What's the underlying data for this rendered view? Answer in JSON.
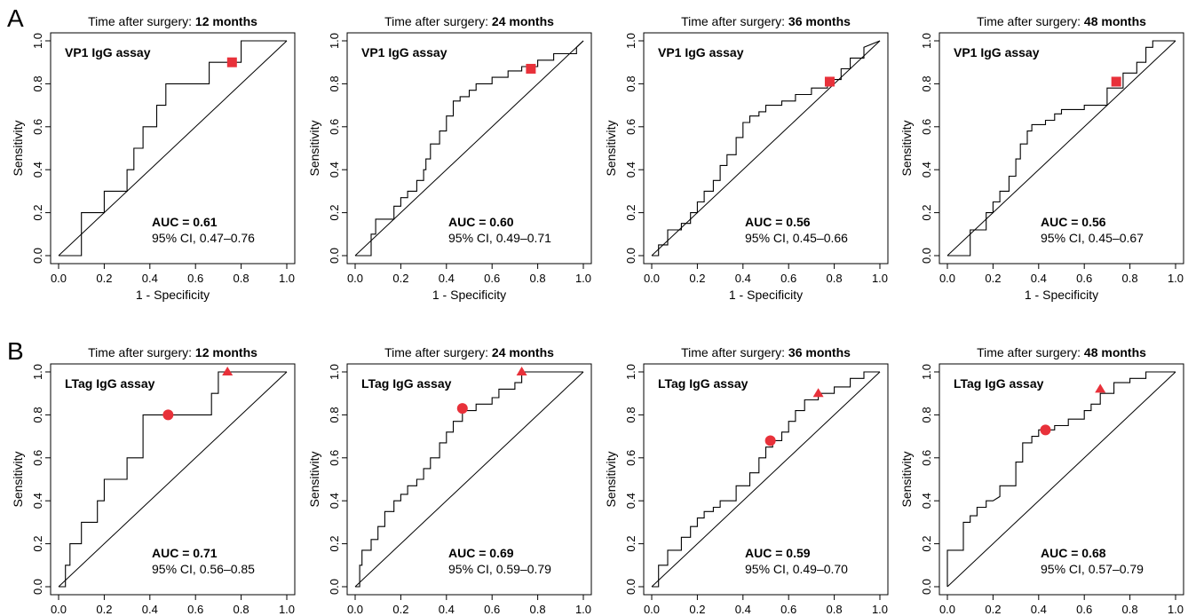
{
  "panel_labels": [
    "A",
    "B"
  ],
  "title_prefix": "Time after surgery: ",
  "chart_data": [
    {
      "type": "line",
      "panel": "A",
      "title": "Time after surgery: 12 months",
      "title_strong": "12 months",
      "assay": "VP1 IgG assay",
      "auc": "AUC = 0.61",
      "ci": "95% CI, 0.47–0.76",
      "xlabel": "1 - Specificity",
      "ylabel": "Sensitivity",
      "xlim": [
        0,
        1
      ],
      "ylim": [
        0,
        1
      ],
      "xticks": [
        "0.0",
        "0.2",
        "0.4",
        "0.6",
        "0.8",
        "1.0"
      ],
      "yticks": [
        "0.0",
        "0.2",
        "0.4",
        "0.6",
        "0.8",
        "1.0"
      ],
      "series": [
        {
          "x": [
            0,
            0.1,
            0.1,
            0.2,
            0.2,
            0.3,
            0.3,
            0.33,
            0.33,
            0.37,
            0.37,
            0.43,
            0.43,
            0.47,
            0.47,
            0.5,
            0.5,
            0.66,
            0.66,
            0.8,
            0.8,
            1.0
          ],
          "y": [
            0,
            0,
            0.2,
            0.2,
            0.3,
            0.3,
            0.4,
            0.4,
            0.5,
            0.5,
            0.6,
            0.6,
            0.7,
            0.7,
            0.8,
            0.8,
            0.8,
            0.8,
            0.9,
            0.9,
            1.0,
            1.0
          ]
        }
      ],
      "markers": [
        {
          "shape": "square",
          "x": 0.76,
          "y": 0.9,
          "color": "#e8313a"
        }
      ]
    },
    {
      "type": "line",
      "panel": "A",
      "title": "Time after surgery: 24 months",
      "title_strong": "24 months",
      "assay": "VP1 IgG assay",
      "auc": "AUC = 0.60",
      "ci": "95% CI, 0.49–0.71",
      "xlabel": "1 - Specificity",
      "ylabel": "Sensitivity",
      "xlim": [
        0,
        1
      ],
      "ylim": [
        0,
        1
      ],
      "xticks": [
        "0.0",
        "0.2",
        "0.4",
        "0.6",
        "0.8",
        "1.0"
      ],
      "yticks": [
        "0.0",
        "0.2",
        "0.4",
        "0.6",
        "0.8",
        "1.0"
      ],
      "series": [
        {
          "x": [
            0,
            0.07,
            0.07,
            0.09,
            0.09,
            0.17,
            0.17,
            0.2,
            0.2,
            0.23,
            0.23,
            0.27,
            0.27,
            0.3,
            0.3,
            0.31,
            0.31,
            0.33,
            0.33,
            0.37,
            0.37,
            0.4,
            0.4,
            0.43,
            0.43,
            0.46,
            0.46,
            0.5,
            0.5,
            0.53,
            0.53,
            0.6,
            0.6,
            0.67,
            0.67,
            0.73,
            0.73,
            0.8,
            0.8,
            0.87,
            0.87,
            0.97,
            0.97,
            1.0
          ],
          "y": [
            0,
            0,
            0.1,
            0.1,
            0.17,
            0.17,
            0.23,
            0.23,
            0.27,
            0.27,
            0.3,
            0.3,
            0.35,
            0.35,
            0.4,
            0.4,
            0.45,
            0.45,
            0.52,
            0.52,
            0.58,
            0.58,
            0.65,
            0.65,
            0.72,
            0.72,
            0.74,
            0.74,
            0.77,
            0.77,
            0.8,
            0.8,
            0.83,
            0.83,
            0.86,
            0.86,
            0.88,
            0.88,
            0.91,
            0.91,
            0.94,
            0.94,
            0.97,
            1.0
          ]
        }
      ],
      "markers": [
        {
          "shape": "square",
          "x": 0.77,
          "y": 0.87,
          "color": "#e8313a"
        }
      ]
    },
    {
      "type": "line",
      "panel": "A",
      "title": "Time after surgery: 36 months",
      "title_strong": "36 months",
      "assay": "VP1 IgG assay",
      "auc": "AUC = 0.56",
      "ci": "95% CI, 0.45–0.66",
      "xlabel": "1 - Specificity",
      "ylabel": "Sensitivity",
      "xlim": [
        0,
        1
      ],
      "ylim": [
        0,
        1
      ],
      "xticks": [
        "0.0",
        "0.2",
        "0.4",
        "0.6",
        "0.8",
        "1.0"
      ],
      "yticks": [
        "0.0",
        "0.2",
        "0.4",
        "0.6",
        "0.8",
        "1.0"
      ],
      "series": [
        {
          "x": [
            0,
            0.03,
            0.03,
            0.07,
            0.07,
            0.13,
            0.13,
            0.17,
            0.17,
            0.2,
            0.2,
            0.23,
            0.23,
            0.27,
            0.27,
            0.3,
            0.3,
            0.33,
            0.33,
            0.37,
            0.37,
            0.4,
            0.4,
            0.43,
            0.43,
            0.47,
            0.47,
            0.5,
            0.5,
            0.57,
            0.57,
            0.63,
            0.63,
            0.7,
            0.7,
            0.77,
            0.77,
            0.83,
            0.83,
            0.87,
            0.87,
            0.93,
            0.93,
            1.0
          ],
          "y": [
            0,
            0,
            0.05,
            0.05,
            0.12,
            0.12,
            0.15,
            0.15,
            0.2,
            0.2,
            0.25,
            0.25,
            0.3,
            0.3,
            0.35,
            0.35,
            0.42,
            0.42,
            0.47,
            0.47,
            0.55,
            0.55,
            0.62,
            0.62,
            0.65,
            0.65,
            0.67,
            0.67,
            0.7,
            0.7,
            0.72,
            0.72,
            0.75,
            0.75,
            0.78,
            0.78,
            0.82,
            0.82,
            0.87,
            0.87,
            0.92,
            0.92,
            0.97,
            1.0
          ]
        }
      ],
      "markers": [
        {
          "shape": "square",
          "x": 0.78,
          "y": 0.81,
          "color": "#e8313a"
        }
      ]
    },
    {
      "type": "line",
      "panel": "A",
      "title": "Time after surgery: 48 months",
      "title_strong": "48 months",
      "assay": "VP1 IgG assay",
      "auc": "AUC = 0.56",
      "ci": "95% CI, 0.45–0.67",
      "xlabel": "1 - Specificity",
      "ylabel": "Sensitivity",
      "xlim": [
        0,
        1
      ],
      "ylim": [
        0,
        1
      ],
      "xticks": [
        "0.0",
        "0.2",
        "0.4",
        "0.6",
        "0.8",
        "1.0"
      ],
      "yticks": [
        "0.0",
        "0.2",
        "0.4",
        "0.6",
        "0.8",
        "1.0"
      ],
      "series": [
        {
          "x": [
            0,
            0.1,
            0.1,
            0.17,
            0.17,
            0.2,
            0.2,
            0.23,
            0.23,
            0.27,
            0.27,
            0.3,
            0.3,
            0.32,
            0.32,
            0.35,
            0.35,
            0.37,
            0.37,
            0.43,
            0.43,
            0.47,
            0.47,
            0.5,
            0.5,
            0.6,
            0.6,
            0.7,
            0.7,
            0.77,
            0.77,
            0.83,
            0.83,
            0.87,
            0.87,
            0.9,
            0.9,
            1.0
          ],
          "y": [
            0,
            0,
            0.12,
            0.12,
            0.2,
            0.2,
            0.25,
            0.25,
            0.3,
            0.3,
            0.37,
            0.37,
            0.45,
            0.45,
            0.52,
            0.52,
            0.58,
            0.58,
            0.61,
            0.61,
            0.63,
            0.63,
            0.66,
            0.66,
            0.68,
            0.68,
            0.7,
            0.7,
            0.78,
            0.78,
            0.85,
            0.85,
            0.9,
            0.9,
            0.97,
            0.97,
            1.0,
            1.0
          ]
        }
      ],
      "markers": [
        {
          "shape": "square",
          "x": 0.74,
          "y": 0.81,
          "color": "#e8313a"
        }
      ]
    },
    {
      "type": "line",
      "panel": "B",
      "title": "Time after surgery: 12 months",
      "title_strong": "12 months",
      "assay": "LTag IgG assay",
      "auc": "AUC = 0.71",
      "ci": "95% CI, 0.56–0.85",
      "xlabel": "",
      "ylabel": "Sensitivity",
      "xlim": [
        0,
        1
      ],
      "ylim": [
        0,
        1
      ],
      "xticks": [
        "0.0",
        "0.2",
        "0.4",
        "0.6",
        "0.8",
        "1.0"
      ],
      "yticks": [
        "0.0",
        "0.2",
        "0.4",
        "0.6",
        "0.8",
        "1.0"
      ],
      "series": [
        {
          "x": [
            0,
            0.03,
            0.03,
            0.05,
            0.05,
            0.1,
            0.1,
            0.17,
            0.17,
            0.2,
            0.2,
            0.23,
            0.23,
            0.3,
            0.3,
            0.37,
            0.37,
            0.43,
            0.43,
            0.53,
            0.53,
            0.67,
            0.67,
            0.7,
            0.7,
            0.73,
            0.73,
            1.0
          ],
          "y": [
            0,
            0,
            0.1,
            0.1,
            0.2,
            0.2,
            0.3,
            0.3,
            0.4,
            0.4,
            0.5,
            0.5,
            0.5,
            0.5,
            0.6,
            0.6,
            0.8,
            0.8,
            0.8,
            0.8,
            0.8,
            0.8,
            0.9,
            0.9,
            1.0,
            1.0,
            1.0,
            1.0
          ]
        }
      ],
      "markers": [
        {
          "shape": "circle",
          "x": 0.48,
          "y": 0.8,
          "color": "#e8313a"
        },
        {
          "shape": "triangle",
          "x": 0.74,
          "y": 1.0,
          "color": "#e8313a"
        }
      ]
    },
    {
      "type": "line",
      "panel": "B",
      "title": "Time after surgery: 24 months",
      "title_strong": "24 months",
      "assay": "LTag IgG assay",
      "auc": "AUC = 0.69",
      "ci": "95% CI, 0.59–0.79",
      "xlabel": "",
      "ylabel": "Sensitivity",
      "xlim": [
        0,
        1
      ],
      "ylim": [
        0,
        1
      ],
      "xticks": [
        "0.0",
        "0.2",
        "0.4",
        "0.6",
        "0.8",
        "1.0"
      ],
      "yticks": [
        "0.0",
        "0.2",
        "0.4",
        "0.6",
        "0.8",
        "1.0"
      ],
      "series": [
        {
          "x": [
            0,
            0.02,
            0.02,
            0.03,
            0.03,
            0.07,
            0.07,
            0.1,
            0.1,
            0.13,
            0.13,
            0.17,
            0.17,
            0.2,
            0.2,
            0.23,
            0.23,
            0.27,
            0.27,
            0.3,
            0.3,
            0.33,
            0.33,
            0.37,
            0.37,
            0.4,
            0.4,
            0.43,
            0.43,
            0.47,
            0.47,
            0.53,
            0.53,
            0.6,
            0.6,
            0.63,
            0.63,
            0.7,
            0.7,
            0.73,
            0.73,
            1.0
          ],
          "y": [
            0,
            0,
            0.1,
            0.1,
            0.17,
            0.17,
            0.22,
            0.22,
            0.28,
            0.28,
            0.35,
            0.35,
            0.4,
            0.4,
            0.43,
            0.43,
            0.47,
            0.47,
            0.5,
            0.5,
            0.55,
            0.55,
            0.6,
            0.6,
            0.67,
            0.67,
            0.72,
            0.72,
            0.77,
            0.77,
            0.82,
            0.82,
            0.85,
            0.85,
            0.88,
            0.88,
            0.92,
            0.92,
            0.95,
            0.95,
            1.0,
            1.0
          ]
        }
      ],
      "markers": [
        {
          "shape": "circle",
          "x": 0.47,
          "y": 0.83,
          "color": "#e8313a"
        },
        {
          "shape": "triangle",
          "x": 0.73,
          "y": 1.0,
          "color": "#e8313a"
        }
      ]
    },
    {
      "type": "line",
      "panel": "B",
      "title": "Time after surgery: 36 months",
      "title_strong": "36 months",
      "assay": "LTag IgG assay",
      "auc": "AUC = 0.59",
      "ci": "95% CI, 0.49–0.70",
      "xlabel": "",
      "ylabel": "Sensitivity",
      "xlim": [
        0,
        1
      ],
      "ylim": [
        0,
        1
      ],
      "xticks": [
        "0.0",
        "0.2",
        "0.4",
        "0.6",
        "0.8",
        "1.0"
      ],
      "yticks": [
        "0.0",
        "0.2",
        "0.4",
        "0.6",
        "0.8",
        "1.0"
      ],
      "series": [
        {
          "x": [
            0,
            0.03,
            0.03,
            0.07,
            0.07,
            0.13,
            0.13,
            0.17,
            0.17,
            0.2,
            0.2,
            0.23,
            0.23,
            0.27,
            0.27,
            0.3,
            0.3,
            0.37,
            0.37,
            0.43,
            0.43,
            0.47,
            0.47,
            0.5,
            0.5,
            0.53,
            0.53,
            0.57,
            0.57,
            0.6,
            0.6,
            0.63,
            0.63,
            0.67,
            0.67,
            0.73,
            0.73,
            0.8,
            0.8,
            0.87,
            0.87,
            0.93,
            0.93,
            1.0
          ],
          "y": [
            0,
            0,
            0.1,
            0.1,
            0.17,
            0.17,
            0.23,
            0.23,
            0.28,
            0.28,
            0.32,
            0.32,
            0.35,
            0.35,
            0.37,
            0.37,
            0.4,
            0.4,
            0.47,
            0.47,
            0.53,
            0.53,
            0.6,
            0.6,
            0.65,
            0.65,
            0.68,
            0.68,
            0.72,
            0.72,
            0.77,
            0.77,
            0.82,
            0.82,
            0.87,
            0.87,
            0.9,
            0.9,
            0.93,
            0.93,
            0.97,
            0.97,
            1.0,
            1.0
          ]
        }
      ],
      "markers": [
        {
          "shape": "circle",
          "x": 0.52,
          "y": 0.68,
          "color": "#e8313a"
        },
        {
          "shape": "triangle",
          "x": 0.73,
          "y": 0.9,
          "color": "#e8313a"
        }
      ]
    },
    {
      "type": "line",
      "panel": "B",
      "title": "Time after surgery: 48 months",
      "title_strong": "48 months",
      "assay": "LTag IgG assay",
      "auc": "AUC = 0.68",
      "ci": "95% CI, 0.57–0.79",
      "xlabel": "",
      "ylabel": "Sensitivity",
      "xlim": [
        0,
        1
      ],
      "ylim": [
        0,
        1
      ],
      "xticks": [
        "0.0",
        "0.2",
        "0.4",
        "0.6",
        "0.8",
        "1.0"
      ],
      "yticks": [
        "0.0",
        "0.2",
        "0.4",
        "0.6",
        "0.8",
        "1.0"
      ],
      "series": [
        {
          "x": [
            0,
            0.0,
            0.07,
            0.07,
            0.1,
            0.1,
            0.13,
            0.13,
            0.17,
            0.17,
            0.2,
            0.2,
            0.23,
            0.23,
            0.3,
            0.3,
            0.33,
            0.33,
            0.37,
            0.37,
            0.4,
            0.4,
            0.43,
            0.43,
            0.47,
            0.47,
            0.53,
            0.53,
            0.6,
            0.6,
            0.63,
            0.63,
            0.67,
            0.67,
            0.73,
            0.73,
            0.8,
            0.8,
            0.87,
            0.87,
            1.0
          ],
          "y": [
            0,
            0.17,
            0.17,
            0.3,
            0.3,
            0.33,
            0.33,
            0.37,
            0.37,
            0.4,
            0.4,
            0.4,
            0.42,
            0.47,
            0.47,
            0.58,
            0.58,
            0.67,
            0.67,
            0.7,
            0.7,
            0.73,
            0.73,
            0.73,
            0.73,
            0.75,
            0.75,
            0.78,
            0.78,
            0.82,
            0.82,
            0.85,
            0.85,
            0.9,
            0.9,
            0.95,
            0.95,
            0.97,
            0.97,
            1.0,
            1.0
          ]
        }
      ],
      "markers": [
        {
          "shape": "circle",
          "x": 0.43,
          "y": 0.73,
          "color": "#e8313a"
        },
        {
          "shape": "triangle",
          "x": 0.67,
          "y": 0.92,
          "color": "#e8313a"
        }
      ]
    }
  ]
}
